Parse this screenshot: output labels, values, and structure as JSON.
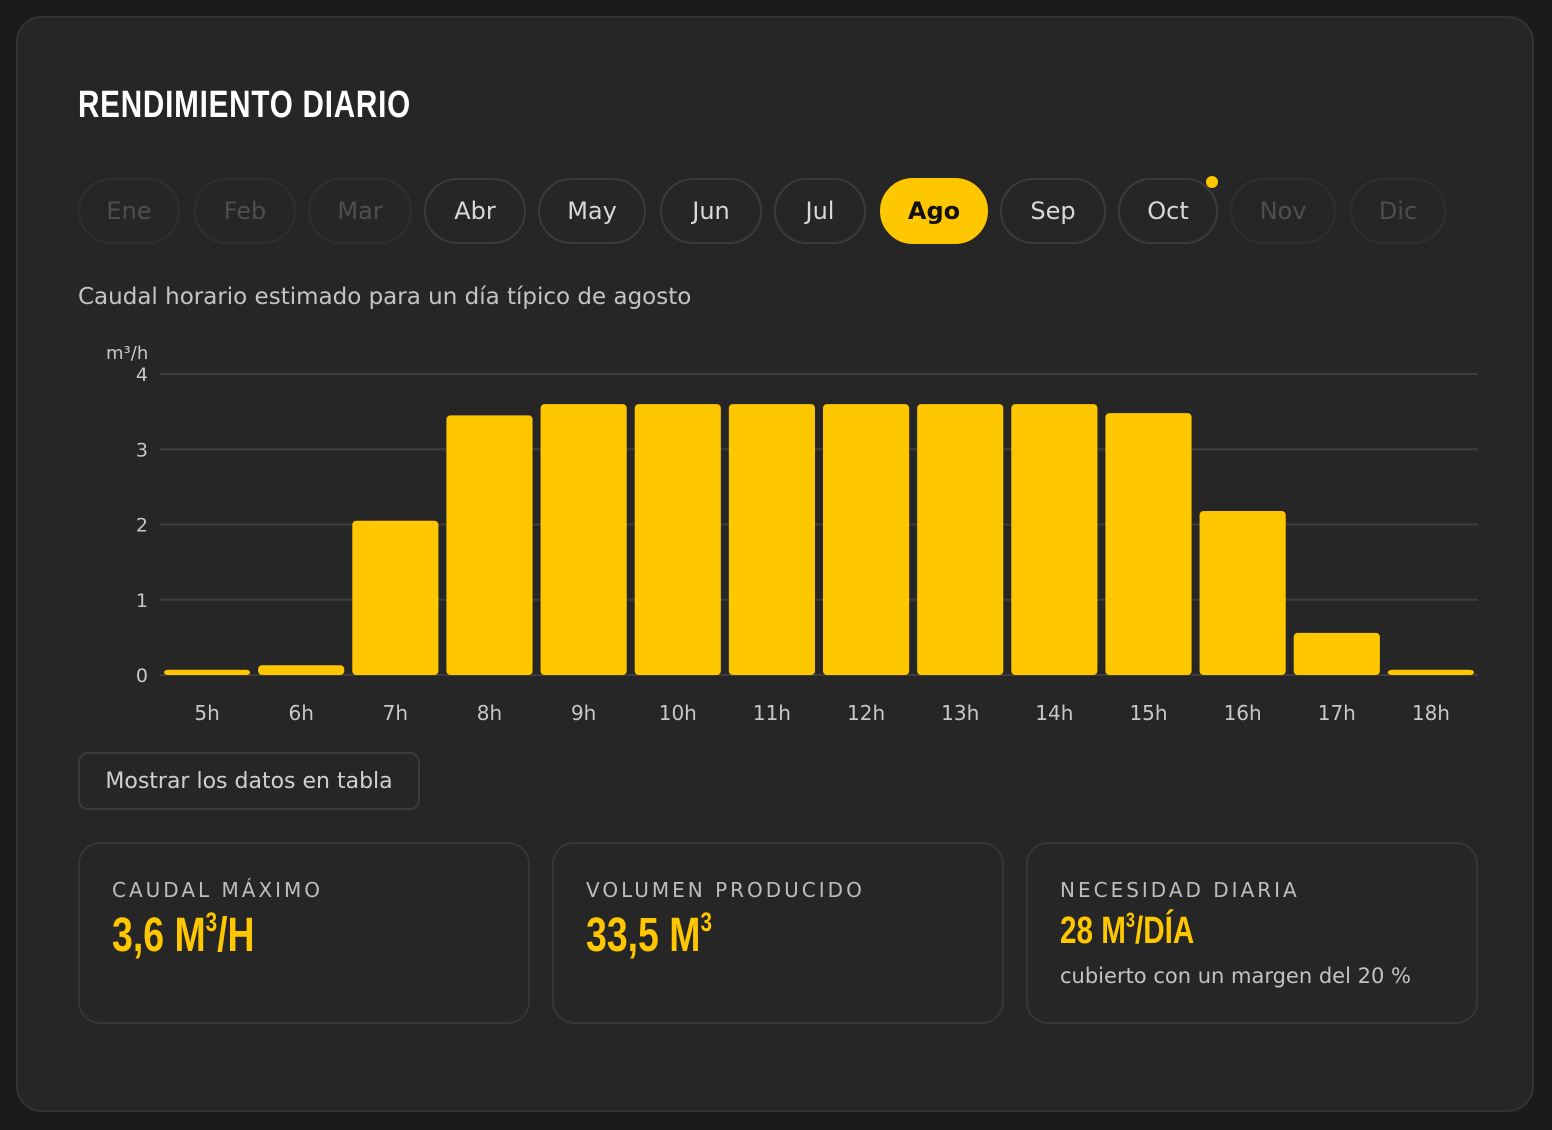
{
  "title": "RENDIMIENTO DIARIO",
  "months": [
    {
      "label": "Ene",
      "state": "disabled"
    },
    {
      "label": "Feb",
      "state": "disabled"
    },
    {
      "label": "Mar",
      "state": "disabled"
    },
    {
      "label": "Abr",
      "state": "normal"
    },
    {
      "label": "May",
      "state": "normal"
    },
    {
      "label": "Jun",
      "state": "normal"
    },
    {
      "label": "Jul",
      "state": "normal"
    },
    {
      "label": "Ago",
      "state": "active"
    },
    {
      "label": "Sep",
      "state": "normal"
    },
    {
      "label": "Oct",
      "state": "normal"
    },
    {
      "label": "Nov",
      "state": "disabled"
    },
    {
      "label": "Dic",
      "state": "disabled"
    }
  ],
  "subtitle": "Caudal horario estimado para un día típico de agosto",
  "chart_data": {
    "type": "bar",
    "ylabel": "m³/h",
    "ylim": [
      0,
      4
    ],
    "yticks": [
      0,
      1,
      2,
      3,
      4
    ],
    "grid": true,
    "categories": [
      "5h",
      "6h",
      "7h",
      "8h",
      "9h",
      "10h",
      "11h",
      "12h",
      "13h",
      "14h",
      "15h",
      "16h",
      "17h",
      "18h"
    ],
    "values": [
      0.07,
      0.13,
      2.05,
      3.45,
      3.6,
      3.6,
      3.6,
      3.6,
      3.6,
      3.6,
      3.48,
      2.18,
      0.56,
      0.07
    ],
    "bar_color": "#ffc700"
  },
  "table_button": "Mostrar los datos en tabla",
  "stats": {
    "peak": {
      "label": "CAUDAL MÁXIMO",
      "value": "3,6 M",
      "sup": "3",
      "suffix": "/H"
    },
    "volume": {
      "label": "VOLUMEN PRODUCIDO",
      "value": "33,5 M",
      "sup": "3",
      "suffix": ""
    },
    "need": {
      "label": "NECESIDAD DIARIA",
      "value": "28 M",
      "sup": "3",
      "suffix": "/DÍA",
      "note": "cubierto con un margen del 20 %"
    }
  },
  "colors": {
    "accent": "#ffc700",
    "card": "#262626",
    "background": "#1b1b1b"
  }
}
